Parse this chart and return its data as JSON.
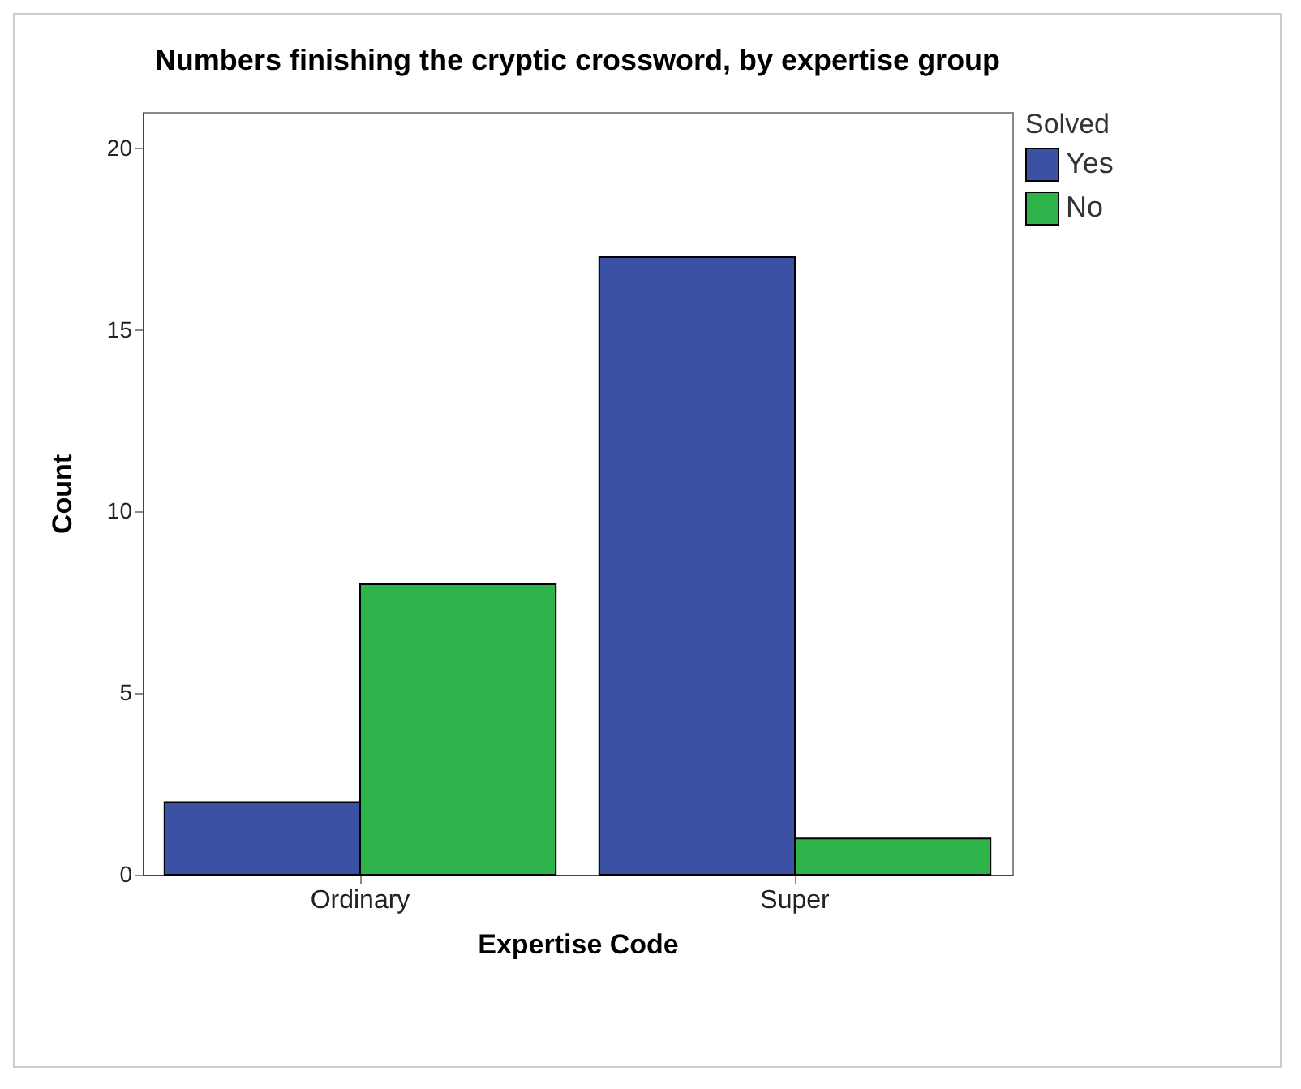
{
  "chart_data": {
    "type": "bar",
    "title": "Numbers finishing the cryptic crossword, by expertise group",
    "xlabel": "Expertise Code",
    "ylabel": "Count",
    "legend_title": "Solved",
    "categories": [
      "Ordinary",
      "Super"
    ],
    "series": [
      {
        "name": "Yes",
        "color": "#3b51a3",
        "values": [
          2,
          17
        ]
      },
      {
        "name": "No",
        "color": "#2db34a",
        "values": [
          8,
          1
        ]
      }
    ],
    "ylim": [
      0,
      21
    ],
    "yticks": [
      0,
      5,
      10,
      15,
      20
    ],
    "grid": false,
    "legend": "top right"
  }
}
